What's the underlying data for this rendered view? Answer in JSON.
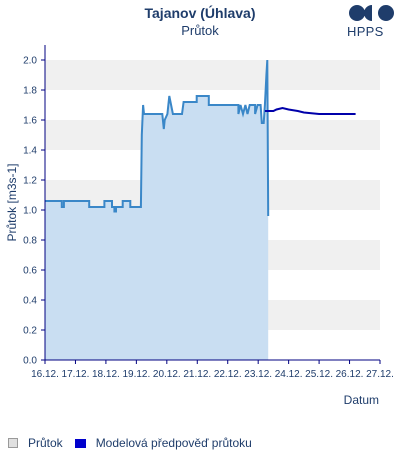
{
  "header": {
    "title": "Tajanov (Úhlava)",
    "subtitle": "Průtok",
    "logo_text": "HPPS"
  },
  "legend": {
    "flow_label": "Průtok",
    "model_label": "Modelová předpověď průtoku"
  },
  "colors": {
    "flow_line": "#3a87c8",
    "flow_fill": "#c9def2",
    "model_line": "#0000aa",
    "band": "#f0f0f0",
    "axis": "#000080"
  },
  "chart_data": {
    "type": "line",
    "title": "Tajanov (Úhlava)",
    "subtitle": "Průtok",
    "xlabel": "Datum",
    "ylabel": "Průtok [m3s-1]",
    "ylim": [
      0,
      2.1
    ],
    "xlim": [
      0,
      11
    ],
    "yticks": [
      "0.0",
      "0.2",
      "0.4",
      "0.6",
      "0.8",
      "1.0",
      "1.2",
      "1.4",
      "1.6",
      "1.8",
      "2.0"
    ],
    "xticks": [
      "16.12.",
      "17.12.",
      "18.12.",
      "19.12.",
      "20.12.",
      "21.12.",
      "22.12.",
      "23.12.",
      "24.12.",
      "25.12.",
      "26.12.",
      "27.12."
    ],
    "grid": "horizontal bands",
    "legend_position": "bottom",
    "series": [
      {
        "name": "Průtok",
        "kind": "area",
        "points": [
          [
            0.0,
            1.06
          ],
          [
            0.55,
            1.06
          ],
          [
            0.55,
            1.02
          ],
          [
            0.62,
            1.02
          ],
          [
            0.62,
            1.06
          ],
          [
            1.45,
            1.06
          ],
          [
            1.45,
            1.02
          ],
          [
            1.95,
            1.02
          ],
          [
            1.95,
            1.06
          ],
          [
            2.2,
            1.06
          ],
          [
            2.2,
            1.02
          ],
          [
            2.28,
            1.02
          ],
          [
            2.28,
            0.99
          ],
          [
            2.33,
            0.99
          ],
          [
            2.33,
            1.02
          ],
          [
            2.55,
            1.02
          ],
          [
            2.55,
            1.06
          ],
          [
            2.8,
            1.06
          ],
          [
            2.8,
            1.02
          ],
          [
            3.15,
            1.02
          ],
          [
            3.18,
            1.5
          ],
          [
            3.22,
            1.7
          ],
          [
            3.25,
            1.64
          ],
          [
            3.85,
            1.64
          ],
          [
            3.9,
            1.54
          ],
          [
            3.93,
            1.6
          ],
          [
            4.02,
            1.64
          ],
          [
            4.08,
            1.76
          ],
          [
            4.14,
            1.7
          ],
          [
            4.2,
            1.64
          ],
          [
            4.5,
            1.64
          ],
          [
            4.55,
            1.72
          ],
          [
            4.98,
            1.72
          ],
          [
            4.98,
            1.76
          ],
          [
            5.38,
            1.76
          ],
          [
            5.38,
            1.7
          ],
          [
            6.35,
            1.7
          ],
          [
            6.35,
            1.64
          ],
          [
            6.42,
            1.7
          ],
          [
            6.5,
            1.64
          ],
          [
            6.58,
            1.7
          ],
          [
            6.65,
            1.64
          ],
          [
            6.72,
            1.7
          ],
          [
            6.9,
            1.7
          ],
          [
            6.9,
            1.64
          ],
          [
            6.98,
            1.7
          ],
          [
            7.08,
            1.7
          ],
          [
            7.12,
            1.58
          ],
          [
            7.18,
            1.58
          ],
          [
            7.22,
            1.7
          ],
          [
            7.27,
            1.9
          ],
          [
            7.3,
            2.0
          ],
          [
            7.33,
            0.96
          ]
        ]
      },
      {
        "name": "Modelová předpověď průtoku",
        "kind": "line",
        "points": [
          [
            7.22,
            1.66
          ],
          [
            7.5,
            1.66
          ],
          [
            7.6,
            1.67
          ],
          [
            7.8,
            1.68
          ],
          [
            8.0,
            1.67
          ],
          [
            8.3,
            1.66
          ],
          [
            8.5,
            1.65
          ],
          [
            9.0,
            1.64
          ],
          [
            9.5,
            1.64
          ],
          [
            10.2,
            1.64
          ]
        ]
      }
    ]
  }
}
